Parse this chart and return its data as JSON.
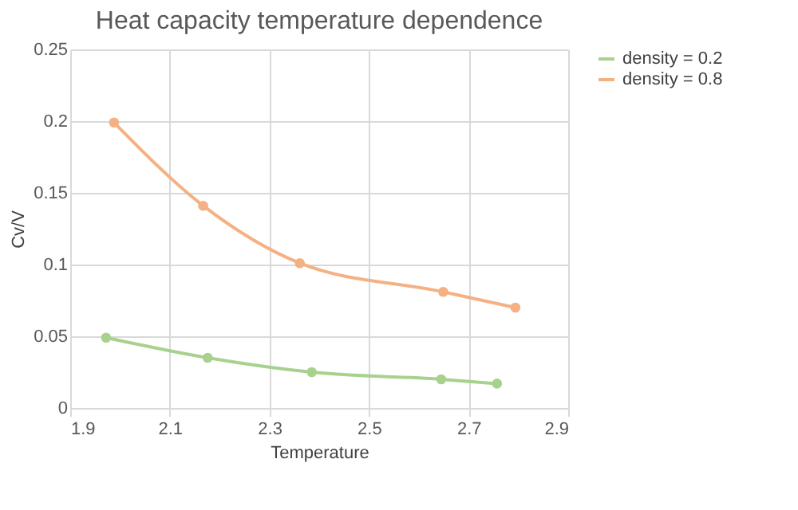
{
  "chart_data": {
    "type": "line",
    "title": "Heat capacity temperature dependence",
    "xlabel": "Temperature",
    "ylabel": "Cv/V",
    "series": [
      {
        "name": "density = 0.2",
        "color": "#a9d18e",
        "x": [
          1.972,
          2.176,
          2.385,
          2.645,
          2.757
        ],
        "values": [
          0.049,
          0.035,
          0.025,
          0.02,
          0.017
        ]
      },
      {
        "name": "density = 0.8",
        "color": "#f4b183",
        "x": [
          1.988,
          2.167,
          2.361,
          2.649,
          2.794
        ],
        "values": [
          0.199,
          0.141,
          0.101,
          0.081,
          0.07
        ]
      }
    ],
    "xlim": [
      1.9,
      2.9
    ],
    "xticks": [
      1.9,
      2.1,
      2.3,
      2.5,
      2.7,
      2.9
    ],
    "ylim": [
      0,
      0.25
    ],
    "yticks": [
      0,
      0.05,
      0.1,
      0.15,
      0.2,
      0.25
    ],
    "grid": true,
    "legend": "right",
    "marker": "circle"
  }
}
